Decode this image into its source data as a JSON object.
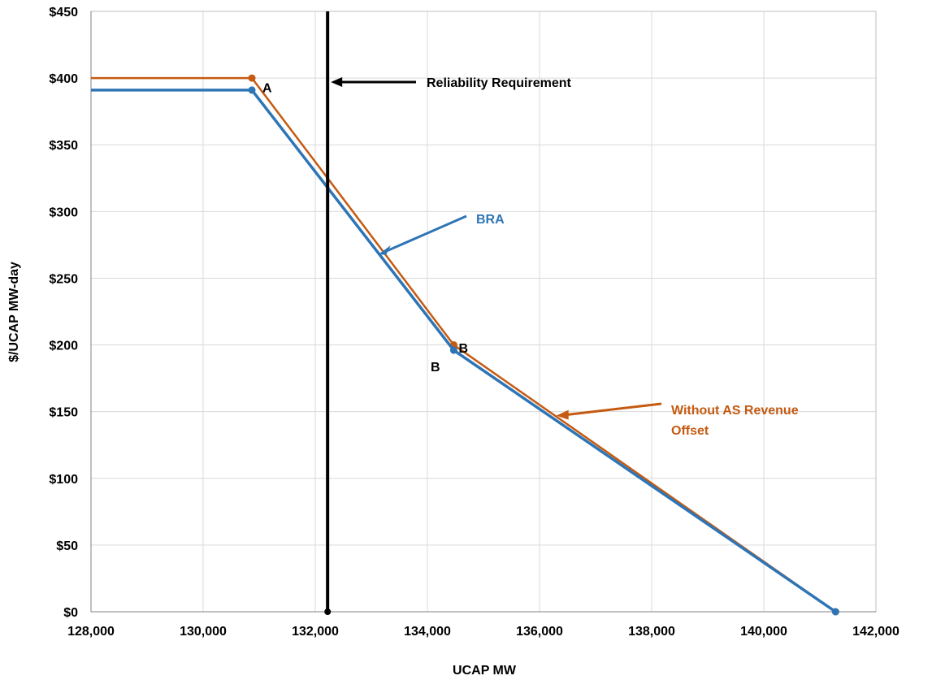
{
  "chart_data": {
    "type": "line",
    "xlabel": "UCAP MW",
    "ylabel": "$/UCAP MW-day",
    "xlim": [
      128000,
      142000
    ],
    "ylim": [
      0,
      450
    ],
    "x_ticks": [
      128000,
      130000,
      132000,
      134000,
      136000,
      138000,
      140000,
      142000
    ],
    "x_tick_labels": [
      "128,000",
      "130,000",
      "132,000",
      "134,000",
      "136,000",
      "138,000",
      "140,000",
      "142,000"
    ],
    "y_ticks": [
      0,
      50,
      100,
      150,
      200,
      250,
      300,
      350,
      400,
      450
    ],
    "y_tick_labels": [
      "$0",
      "$50",
      "$100",
      "$150",
      "$200",
      "$250",
      "$300",
      "$350",
      "$400",
      "$450"
    ],
    "grid": true,
    "series": [
      {
        "name": "Without AS Revenue Offset",
        "color": "#c55a11",
        "points": [
          [
            128000,
            400
          ],
          [
            130870,
            400
          ],
          [
            134470,
            200
          ],
          [
            141280,
            0
          ]
        ]
      },
      {
        "name": "BRA",
        "color": "#2e75b6",
        "points": [
          [
            128000,
            391
          ],
          [
            130870,
            391
          ],
          [
            134470,
            196
          ],
          [
            141280,
            0
          ]
        ]
      }
    ],
    "reliability_requirement": {
      "label": "Reliability Requirement",
      "x": 132220,
      "color": "#000000"
    },
    "point_labels": [
      {
        "text": "A",
        "x": 131000,
        "y": 393,
        "color": "#000000"
      },
      {
        "text": "B",
        "x": 134500,
        "y": 198,
        "color": "#000000"
      },
      {
        "text": "B",
        "x": 134000,
        "y": 184,
        "color": "#000000"
      }
    ],
    "series_labels": [
      {
        "text": "BRA",
        "color": "#2e75b6"
      },
      {
        "text_lines": [
          "Without AS Revenue",
          "Offset"
        ],
        "color": "#c55a11"
      }
    ]
  }
}
